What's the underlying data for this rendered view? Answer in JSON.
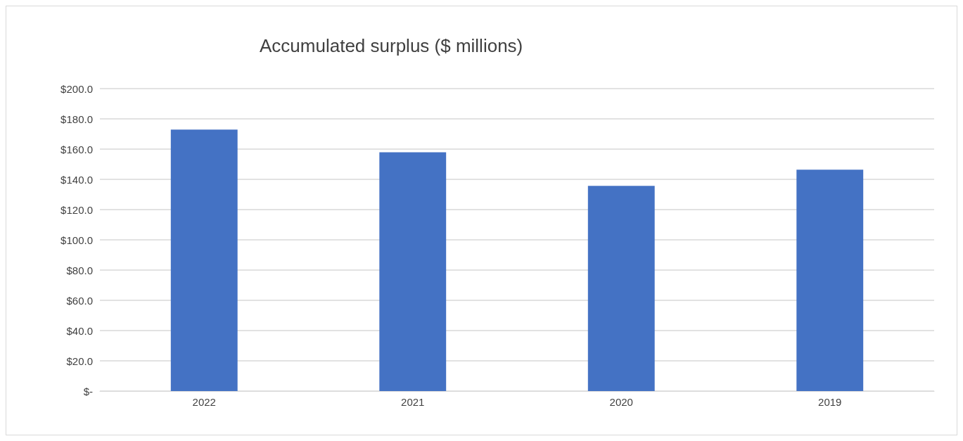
{
  "chart_data": {
    "type": "bar",
    "title": "Accumulated surplus ($ millions)",
    "categories": [
      "2022",
      "2021",
      "2020",
      "2019"
    ],
    "values": [
      172.9,
      157.9,
      135.7,
      146.4
    ],
    "color": "#4472c4",
    "ylim": [
      0,
      200
    ],
    "yticks": [
      {
        "value": 0,
        "label": "$-"
      },
      {
        "value": 20,
        "label": "$20.0"
      },
      {
        "value": 40,
        "label": "$40.0"
      },
      {
        "value": 60,
        "label": "$60.0"
      },
      {
        "value": 80,
        "label": "$80.0"
      },
      {
        "value": 100,
        "label": "$100.0"
      },
      {
        "value": 120,
        "label": "$120.0"
      },
      {
        "value": 140,
        "label": "$140.0"
      },
      {
        "value": 160,
        "label": "$160.0"
      },
      {
        "value": 180,
        "label": "$180.0"
      },
      {
        "value": 200,
        "label": "$200.0"
      }
    ],
    "grid": "y"
  }
}
